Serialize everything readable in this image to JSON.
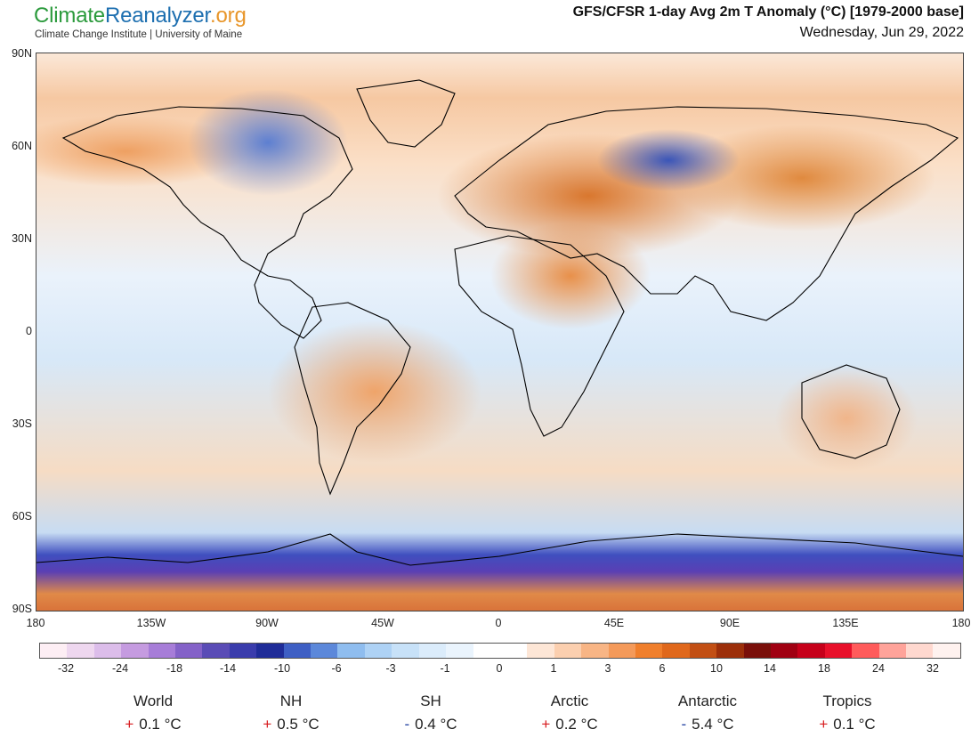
{
  "header": {
    "brand_part1": "Climate",
    "brand_part2": "Reanalyzer",
    "brand_part3": ".org",
    "subtitle": "Climate Change Institute | University of Maine",
    "title": "GFS/CFSR 1-day Avg 2m T Anomaly (°C) [1979-2000 base]",
    "date": "Wednesday, Jun 29, 2022"
  },
  "axes": {
    "y_ticks": [
      "90N",
      "60N",
      "30N",
      "0",
      "30S",
      "60S",
      "90S"
    ],
    "x_ticks": [
      "180",
      "135W",
      "90W",
      "45W",
      "0",
      "45E",
      "90E",
      "135E",
      "180"
    ]
  },
  "colorbar": {
    "labels": [
      "-32",
      "-24",
      "-18",
      "-14",
      "-10",
      "-6",
      "-3",
      "-1",
      "0",
      "1",
      "3",
      "6",
      "10",
      "14",
      "18",
      "24",
      "32"
    ],
    "colors": [
      "#fdeef4",
      "#eed7ef",
      "#dcbdea",
      "#c59be0",
      "#a77dd8",
      "#8462c8",
      "#5a4cb6",
      "#3a3cac",
      "#1f2c98",
      "#3e5fc4",
      "#5c88da",
      "#8fbdef",
      "#aed2f5",
      "#c7e1f8",
      "#dbecfb",
      "#eaf4fd",
      "#ffffff",
      "#ffffff",
      "#fde6d6",
      "#fbcfaf",
      "#f8b585",
      "#f49a5a",
      "#f07f2c",
      "#e0681c",
      "#c24f14",
      "#9c2f0a",
      "#7a0f0a",
      "#a00012",
      "#c6001a",
      "#e8102a",
      "#ff5b5b",
      "#ffa39a",
      "#ffd8cf",
      "#fff2ef"
    ]
  },
  "stats": [
    {
      "name": "World",
      "sign": "+",
      "value": "0.1 °C",
      "sign_color": "#d7191c"
    },
    {
      "name": "NH",
      "sign": "+",
      "value": "0.5 °C",
      "sign_color": "#d7191c"
    },
    {
      "name": "SH",
      "sign": "-",
      "value": "0.4 °C",
      "sign_color": "#1f3fa0"
    },
    {
      "name": "Arctic",
      "sign": "+",
      "value": "0.2 °C",
      "sign_color": "#d7191c"
    },
    {
      "name": "Antarctic",
      "sign": "-",
      "value": "5.4 °C",
      "sign_color": "#1f3fa0"
    },
    {
      "name": "Tropics",
      "sign": "+",
      "value": "0.1 °C",
      "sign_color": "#d7191c"
    }
  ]
}
